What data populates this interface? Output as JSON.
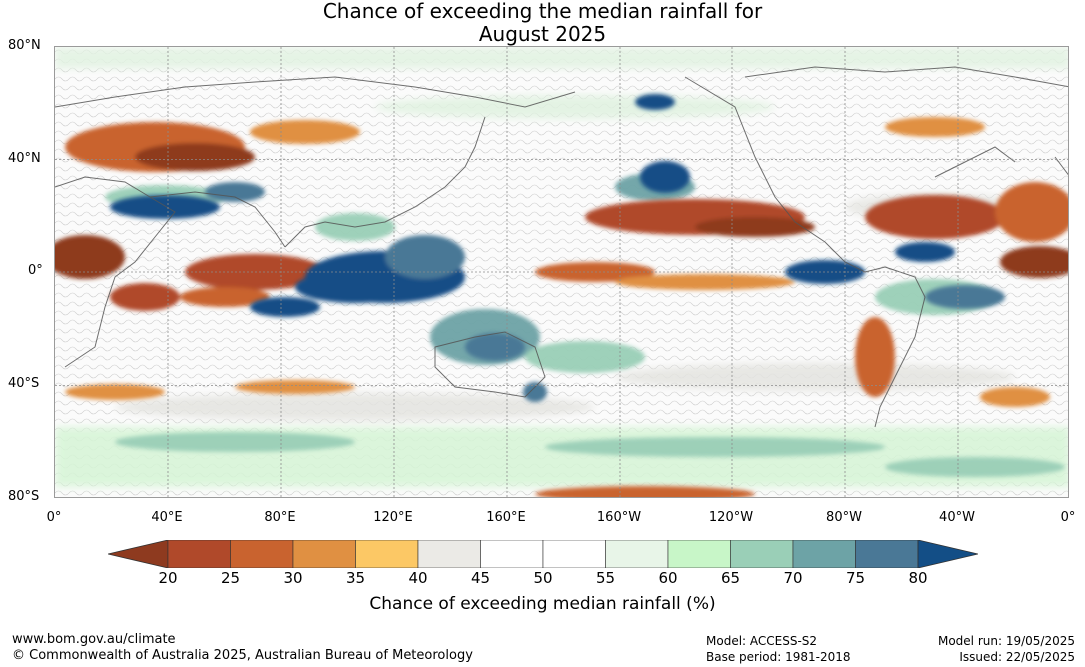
{
  "title": {
    "line1": "Chance of exceeding the median rainfall for",
    "line2": "August 2025"
  },
  "map": {
    "latitude_labels": [
      "80°N",
      "40°N",
      "0°",
      "40°S",
      "80°S"
    ],
    "longitude_labels": [
      "0°",
      "40°E",
      "80°E",
      "120°E",
      "160°E",
      "160°W",
      "120°W",
      "80°W",
      "40°W",
      "0°"
    ]
  },
  "legend": {
    "title": "Chance of exceeding median rainfall (%)",
    "ticks": [
      "20",
      "25",
      "30",
      "35",
      "40",
      "45",
      "50",
      "55",
      "60",
      "65",
      "70",
      "75",
      "80"
    ],
    "colors": [
      "#8e3a1f",
      "#b0492a",
      "#c9632f",
      "#e09042",
      "#fcc865",
      "#ebeae6",
      "#ffffff",
      "#ffffff",
      "#e8f5e8",
      "#c8f6c8",
      "#9acfb7",
      "#6da3a6",
      "#4a7896",
      "#134e86"
    ],
    "low_arrow_color": "#8e3a1f",
    "high_arrow_color": "#134e86"
  },
  "footer": {
    "website": "www.bom.gov.au/climate",
    "copyright": "© Commonwealth of Australia 2025, Australian Bureau of Meteorology",
    "model": "Model: ACCESS-S2",
    "base_period": "Base period: 1981-2018",
    "model_run": "Model run: 19/05/2025",
    "issued": "Issued: 22/05/2025"
  }
}
